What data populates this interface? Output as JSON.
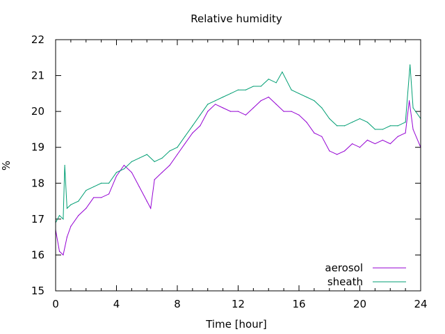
{
  "chart_data": {
    "type": "line",
    "title": "Relative humidity",
    "xlabel": "Time [hour]",
    "ylabel": "%",
    "xlim": [
      0,
      24
    ],
    "ylim": [
      15,
      22
    ],
    "xticks": [
      0,
      4,
      8,
      12,
      16,
      20,
      24
    ],
    "yticks": [
      15,
      16,
      17,
      18,
      19,
      20,
      21,
      22
    ],
    "grid": false,
    "legend_position": "bottom-right",
    "series": [
      {
        "name": "aerosol",
        "color": "#9400d3",
        "x": [
          0,
          0.25,
          0.5,
          0.75,
          1,
          1.5,
          2,
          2.5,
          3,
          3.5,
          4,
          4.5,
          5,
          5.5,
          6,
          6.25,
          6.5,
          7,
          7.5,
          8,
          8.5,
          9,
          9.5,
          10,
          10.5,
          11,
          11.5,
          12,
          12.5,
          13,
          13.5,
          14,
          14.5,
          15,
          15.5,
          16,
          16.5,
          17,
          17.5,
          18,
          18.5,
          19,
          19.5,
          20,
          20.5,
          21,
          21.5,
          22,
          22.5,
          23,
          23.25,
          23.5,
          24
        ],
        "y": [
          16.7,
          16.1,
          16.0,
          16.5,
          16.8,
          17.1,
          17.3,
          17.6,
          17.6,
          17.7,
          18.2,
          18.5,
          18.3,
          17.9,
          17.5,
          17.3,
          18.1,
          18.3,
          18.5,
          18.8,
          19.1,
          19.4,
          19.6,
          20.0,
          20.2,
          20.1,
          20.0,
          20.0,
          19.9,
          20.1,
          20.3,
          20.4,
          20.2,
          20.0,
          20.0,
          19.9,
          19.7,
          19.4,
          19.3,
          18.9,
          18.8,
          18.9,
          19.1,
          19.0,
          19.2,
          19.1,
          19.2,
          19.1,
          19.3,
          19.4,
          20.3,
          19.5,
          19.0
        ]
      },
      {
        "name": "sheath",
        "color": "#009e73",
        "x": [
          0,
          0.25,
          0.5,
          0.6,
          0.75,
          1,
          1.5,
          2,
          2.5,
          3,
          3.5,
          4,
          4.5,
          5,
          5.5,
          6,
          6.5,
          7,
          7.5,
          8,
          8.5,
          9,
          9.5,
          10,
          10.5,
          11,
          11.5,
          12,
          12.5,
          13,
          13.5,
          14,
          14.5,
          14.9,
          15.5,
          16,
          16.5,
          17,
          17.5,
          18,
          18.5,
          19,
          19.5,
          20,
          20.5,
          21,
          21.5,
          22,
          22.5,
          23,
          23.3,
          23.5,
          24
        ],
        "y": [
          16.9,
          17.1,
          17.0,
          18.5,
          17.3,
          17.4,
          17.5,
          17.8,
          17.9,
          18.0,
          18.0,
          18.3,
          18.4,
          18.6,
          18.7,
          18.8,
          18.6,
          18.7,
          18.9,
          19.0,
          19.3,
          19.6,
          19.9,
          20.2,
          20.3,
          20.4,
          20.5,
          20.6,
          20.6,
          20.7,
          20.7,
          20.9,
          20.8,
          21.1,
          20.6,
          20.5,
          20.4,
          20.3,
          20.1,
          19.8,
          19.6,
          19.6,
          19.7,
          19.8,
          19.7,
          19.5,
          19.5,
          19.6,
          19.6,
          19.7,
          21.3,
          20.1,
          19.8
        ]
      }
    ]
  }
}
